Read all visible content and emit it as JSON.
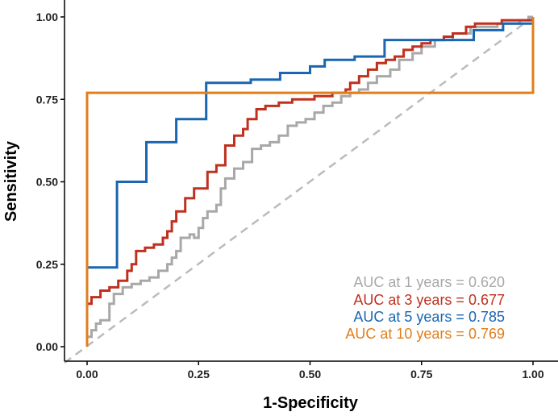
{
  "chart_data": {
    "type": "line",
    "title": "",
    "xlabel": "1-Specificity",
    "ylabel": "Sensitivity",
    "xlim": [
      0,
      1
    ],
    "ylim": [
      0,
      1
    ],
    "x_ticks": [
      0,
      0.25,
      0.5,
      0.75,
      1
    ],
    "y_ticks": [
      0,
      0.25,
      0.5,
      0.75,
      1
    ],
    "x_tick_labels": [
      "0.00",
      "0.25",
      "0.50",
      "0.75",
      "1.00"
    ],
    "y_tick_labels": [
      "0.00",
      "0.25",
      "0.50",
      "0.75",
      "1.00"
    ],
    "grid": false,
    "legend_position": "bottom-right",
    "reference_line": {
      "name": "Chance",
      "style": "dashed",
      "color": "#BBBBBB",
      "points": [
        [
          0,
          0
        ],
        [
          1,
          1
        ]
      ]
    },
    "series": [
      {
        "name": "1 years",
        "label": "AUC at 1 years = 0.620",
        "auc": 0.62,
        "color": "#A8A8A8",
        "points": [
          [
            0,
            0
          ],
          [
            0,
            0.03
          ],
          [
            0.01,
            0.03
          ],
          [
            0.01,
            0.05
          ],
          [
            0.02,
            0.05
          ],
          [
            0.02,
            0.07
          ],
          [
            0.03,
            0.07
          ],
          [
            0.03,
            0.08
          ],
          [
            0.05,
            0.08
          ],
          [
            0.05,
            0.13
          ],
          [
            0.06,
            0.13
          ],
          [
            0.06,
            0.16
          ],
          [
            0.08,
            0.16
          ],
          [
            0.08,
            0.18
          ],
          [
            0.1,
            0.18
          ],
          [
            0.1,
            0.19
          ],
          [
            0.12,
            0.19
          ],
          [
            0.12,
            0.2
          ],
          [
            0.14,
            0.2
          ],
          [
            0.14,
            0.21
          ],
          [
            0.16,
            0.21
          ],
          [
            0.16,
            0.23
          ],
          [
            0.18,
            0.23
          ],
          [
            0.18,
            0.25
          ],
          [
            0.19,
            0.25
          ],
          [
            0.19,
            0.27
          ],
          [
            0.2,
            0.27
          ],
          [
            0.2,
            0.29
          ],
          [
            0.21,
            0.29
          ],
          [
            0.21,
            0.33
          ],
          [
            0.23,
            0.33
          ],
          [
            0.23,
            0.34
          ],
          [
            0.24,
            0.34
          ],
          [
            0.24,
            0.33
          ],
          [
            0.25,
            0.33
          ],
          [
            0.25,
            0.36
          ],
          [
            0.26,
            0.36
          ],
          [
            0.26,
            0.39
          ],
          [
            0.27,
            0.39
          ],
          [
            0.27,
            0.41
          ],
          [
            0.29,
            0.41
          ],
          [
            0.29,
            0.43
          ],
          [
            0.3,
            0.43
          ],
          [
            0.3,
            0.48
          ],
          [
            0.31,
            0.48
          ],
          [
            0.31,
            0.51
          ],
          [
            0.33,
            0.51
          ],
          [
            0.33,
            0.54
          ],
          [
            0.35,
            0.54
          ],
          [
            0.35,
            0.56
          ],
          [
            0.37,
            0.56
          ],
          [
            0.37,
            0.6
          ],
          [
            0.39,
            0.6
          ],
          [
            0.39,
            0.61
          ],
          [
            0.41,
            0.61
          ],
          [
            0.41,
            0.62
          ],
          [
            0.43,
            0.62
          ],
          [
            0.43,
            0.64
          ],
          [
            0.45,
            0.64
          ],
          [
            0.45,
            0.67
          ],
          [
            0.47,
            0.67
          ],
          [
            0.47,
            0.68
          ],
          [
            0.49,
            0.68
          ],
          [
            0.49,
            0.69
          ],
          [
            0.51,
            0.69
          ],
          [
            0.51,
            0.71
          ],
          [
            0.53,
            0.71
          ],
          [
            0.53,
            0.73
          ],
          [
            0.55,
            0.73
          ],
          [
            0.55,
            0.74
          ],
          [
            0.57,
            0.74
          ],
          [
            0.57,
            0.76
          ],
          [
            0.59,
            0.76
          ],
          [
            0.59,
            0.77
          ],
          [
            0.61,
            0.77
          ],
          [
            0.61,
            0.78
          ],
          [
            0.63,
            0.78
          ],
          [
            0.63,
            0.8
          ],
          [
            0.65,
            0.8
          ],
          [
            0.65,
            0.82
          ],
          [
            0.68,
            0.82
          ],
          [
            0.68,
            0.84
          ],
          [
            0.7,
            0.84
          ],
          [
            0.7,
            0.87
          ],
          [
            0.73,
            0.87
          ],
          [
            0.73,
            0.89
          ],
          [
            0.75,
            0.89
          ],
          [
            0.75,
            0.91
          ],
          [
            0.78,
            0.91
          ],
          [
            0.78,
            0.93
          ],
          [
            0.82,
            0.93
          ],
          [
            0.82,
            0.95
          ],
          [
            0.86,
            0.95
          ],
          [
            0.86,
            0.97
          ],
          [
            0.92,
            0.97
          ],
          [
            0.92,
            0.98
          ],
          [
            0.97,
            0.98
          ],
          [
            0.97,
            0.99
          ],
          [
            0.99,
            0.99
          ],
          [
            0.99,
            1.0
          ],
          [
            1.0,
            1.0
          ]
        ]
      },
      {
        "name": "3 years",
        "label": "AUC at 3 years = 0.677",
        "auc": 0.677,
        "color": "#C0301E",
        "points": [
          [
            0,
            0
          ],
          [
            0,
            0.13
          ],
          [
            0.01,
            0.13
          ],
          [
            0.01,
            0.15
          ],
          [
            0.03,
            0.15
          ],
          [
            0.03,
            0.17
          ],
          [
            0.05,
            0.17
          ],
          [
            0.05,
            0.18
          ],
          [
            0.07,
            0.18
          ],
          [
            0.07,
            0.2
          ],
          [
            0.09,
            0.2
          ],
          [
            0.09,
            0.23
          ],
          [
            0.1,
            0.23
          ],
          [
            0.1,
            0.25
          ],
          [
            0.11,
            0.25
          ],
          [
            0.11,
            0.29
          ],
          [
            0.13,
            0.29
          ],
          [
            0.13,
            0.3
          ],
          [
            0.15,
            0.3
          ],
          [
            0.15,
            0.31
          ],
          [
            0.17,
            0.31
          ],
          [
            0.17,
            0.33
          ],
          [
            0.18,
            0.33
          ],
          [
            0.18,
            0.35
          ],
          [
            0.19,
            0.35
          ],
          [
            0.19,
            0.38
          ],
          [
            0.2,
            0.38
          ],
          [
            0.2,
            0.41
          ],
          [
            0.22,
            0.41
          ],
          [
            0.22,
            0.45
          ],
          [
            0.24,
            0.45
          ],
          [
            0.24,
            0.48
          ],
          [
            0.27,
            0.48
          ],
          [
            0.27,
            0.53
          ],
          [
            0.29,
            0.53
          ],
          [
            0.29,
            0.55
          ],
          [
            0.31,
            0.55
          ],
          [
            0.31,
            0.61
          ],
          [
            0.33,
            0.61
          ],
          [
            0.33,
            0.64
          ],
          [
            0.35,
            0.64
          ],
          [
            0.35,
            0.66
          ],
          [
            0.36,
            0.66
          ],
          [
            0.36,
            0.69
          ],
          [
            0.38,
            0.69
          ],
          [
            0.38,
            0.72
          ],
          [
            0.4,
            0.72
          ],
          [
            0.4,
            0.73
          ],
          [
            0.43,
            0.73
          ],
          [
            0.43,
            0.74
          ],
          [
            0.46,
            0.74
          ],
          [
            0.46,
            0.75
          ],
          [
            0.51,
            0.75
          ],
          [
            0.51,
            0.76
          ],
          [
            0.55,
            0.76
          ],
          [
            0.55,
            0.77
          ],
          [
            0.58,
            0.77
          ],
          [
            0.58,
            0.78
          ],
          [
            0.59,
            0.78
          ],
          [
            0.59,
            0.8
          ],
          [
            0.61,
            0.8
          ],
          [
            0.61,
            0.82
          ],
          [
            0.63,
            0.82
          ],
          [
            0.63,
            0.84
          ],
          [
            0.65,
            0.84
          ],
          [
            0.65,
            0.86
          ],
          [
            0.67,
            0.86
          ],
          [
            0.67,
            0.87
          ],
          [
            0.69,
            0.87
          ],
          [
            0.69,
            0.88
          ],
          [
            0.71,
            0.88
          ],
          [
            0.71,
            0.9
          ],
          [
            0.73,
            0.9
          ],
          [
            0.73,
            0.91
          ],
          [
            0.75,
            0.91
          ],
          [
            0.75,
            0.92
          ],
          [
            0.77,
            0.92
          ],
          [
            0.77,
            0.93
          ],
          [
            0.8,
            0.93
          ],
          [
            0.8,
            0.94
          ],
          [
            0.82,
            0.94
          ],
          [
            0.82,
            0.95
          ],
          [
            0.85,
            0.95
          ],
          [
            0.85,
            0.97
          ],
          [
            0.87,
            0.97
          ],
          [
            0.87,
            0.98
          ],
          [
            0.93,
            0.98
          ],
          [
            0.93,
            0.99
          ],
          [
            1.0,
            0.99
          ]
        ]
      },
      {
        "name": "5 years",
        "label": "AUC at 5 years = 0.785",
        "auc": 0.785,
        "color": "#1A66B0",
        "points": [
          [
            0,
            0.24
          ],
          [
            0.067,
            0.24
          ],
          [
            0.067,
            0.5
          ],
          [
            0.133,
            0.5
          ],
          [
            0.133,
            0.62
          ],
          [
            0.2,
            0.62
          ],
          [
            0.2,
            0.69
          ],
          [
            0.267,
            0.69
          ],
          [
            0.267,
            0.8
          ],
          [
            0.367,
            0.8
          ],
          [
            0.367,
            0.81
          ],
          [
            0.433,
            0.81
          ],
          [
            0.433,
            0.83
          ],
          [
            0.5,
            0.83
          ],
          [
            0.5,
            0.85
          ],
          [
            0.533,
            0.85
          ],
          [
            0.533,
            0.87
          ],
          [
            0.6,
            0.87
          ],
          [
            0.6,
            0.88
          ],
          [
            0.667,
            0.88
          ],
          [
            0.667,
            0.93
          ],
          [
            0.867,
            0.93
          ],
          [
            0.867,
            0.96
          ],
          [
            0.933,
            0.96
          ],
          [
            0.933,
            0.98
          ],
          [
            1.0,
            0.98
          ],
          [
            1.0,
            1.0
          ]
        ]
      },
      {
        "name": "10 years",
        "label": "AUC at 10 years = 0.769",
        "auc": 0.769,
        "color": "#E07E1B",
        "points": [
          [
            0,
            0
          ],
          [
            0,
            0.77
          ],
          [
            1.0,
            0.77
          ],
          [
            1.0,
            1.0
          ]
        ]
      }
    ]
  }
}
